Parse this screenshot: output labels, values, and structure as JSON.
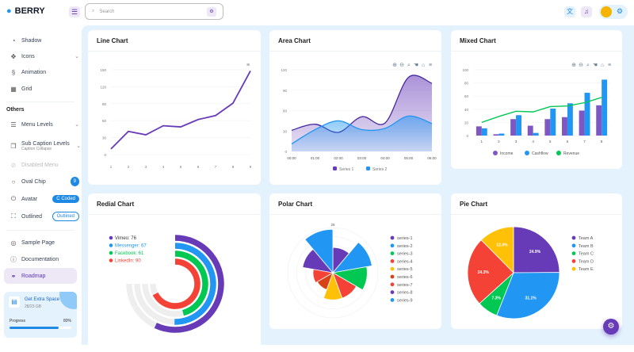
{
  "brand": "BERRY",
  "sidebar": {
    "items": [
      {
        "label": "Shadow",
        "icon": "shadow-icon"
      },
      {
        "label": "Icons",
        "icon": "icons-icon"
      },
      {
        "label": "Animation",
        "icon": "animation-icon"
      },
      {
        "label": "Grid",
        "icon": "grid-icon"
      }
    ],
    "section": "Others",
    "others": [
      {
        "label": "Menu Levels"
      },
      {
        "label": "Sub Caption Levels",
        "caption": "Caption Collapse"
      },
      {
        "label": "Disabled Menu"
      },
      {
        "label": "Oval Chip",
        "badge": "9"
      },
      {
        "label": "Avatar",
        "badge": "Coded",
        "badge_prefix": "C"
      },
      {
        "label": "Outlined",
        "badge": "Outlined"
      }
    ],
    "bottom": [
      {
        "label": "Sample Page"
      },
      {
        "label": "Documentation"
      },
      {
        "label": "Roadmap"
      }
    ],
    "storage": {
      "title": "Get Extra Space",
      "subtitle": "28/23 GB",
      "progress_label": "Progress",
      "progress_text": "80%",
      "progress": 80
    }
  },
  "header": {
    "search_placeholder": "Search"
  },
  "colors": {
    "purple": "#673ab7",
    "blue": "#2196f3",
    "green": "#00c853",
    "red": "#f44336",
    "yellow": "#ffc107",
    "orange": "#d84315",
    "bg": "#e3f2fd"
  },
  "cards": {
    "line": "Line Chart",
    "area": "Area Chart",
    "mixed": "Mixed Chart",
    "radial": "Redial Chart",
    "polar": "Polar Chart",
    "pie": "Pie Chart"
  },
  "chart_data": [
    {
      "type": "line",
      "title": "Line Chart",
      "categories": [
        "1",
        "2",
        "3",
        "4",
        "5",
        "6",
        "7",
        "8",
        "9"
      ],
      "values": [
        10,
        41,
        35,
        51,
        49,
        62,
        69,
        91,
        148
      ],
      "ylim": [
        0,
        150
      ],
      "yticks": [
        "0",
        "30",
        "60",
        "90",
        "120",
        "150"
      ]
    },
    {
      "type": "area",
      "title": "Area Chart",
      "categories": [
        "00:00",
        "01:00",
        "02:00",
        "03:00",
        "04:00",
        "05:00",
        "06:00"
      ],
      "ylim": [
        0,
        120
      ],
      "yticks": [
        "0",
        "30",
        "60",
        "90",
        "120"
      ],
      "series": [
        {
          "name": "Series 1",
          "values": [
            31,
            40,
            28,
            51,
            42,
            109,
            100
          ]
        },
        {
          "name": "Series 2",
          "values": [
            11,
            32,
            45,
            32,
            34,
            52,
            41
          ]
        }
      ]
    },
    {
      "type": "bar",
      "title": "Mixed Chart",
      "categories": [
        "1",
        "2",
        "3",
        "4",
        "5",
        "6",
        "7",
        "8"
      ],
      "ylim": [
        0,
        100
      ],
      "yticks": [
        "0",
        "20",
        "40",
        "60",
        "80",
        "100"
      ],
      "series": [
        {
          "name": "Income",
          "type": "bar",
          "values": [
            14,
            2,
            25,
            15,
            25,
            28,
            38,
            46
          ]
        },
        {
          "name": "Cashflow",
          "type": "bar",
          "values": [
            11,
            3,
            31,
            4,
            41,
            49,
            65,
            85
          ]
        },
        {
          "name": "Revenue",
          "type": "line",
          "values": [
            20,
            29,
            37,
            36,
            44,
            45,
            50,
            58
          ]
        }
      ]
    },
    {
      "type": "radialBar",
      "title": "Redial Chart",
      "series": [
        {
          "name": "Vimeo",
          "value": 76,
          "label": "Vimeo: 76"
        },
        {
          "name": "Messenger",
          "value": 67,
          "label": "Messenger: 67"
        },
        {
          "name": "Facebook",
          "value": 61,
          "label": "Facebook: 61"
        },
        {
          "name": "LinkedIn",
          "value": 90,
          "label": "LinkedIn: 90"
        }
      ]
    },
    {
      "type": "polarArea",
      "title": "Polar Chart",
      "rmax": 25,
      "rtick": "25",
      "series": [
        {
          "name": "series-1",
          "value": 14
        },
        {
          "name": "series-2",
          "value": 22
        },
        {
          "name": "series-3",
          "value": 19
        },
        {
          "name": "series-4",
          "value": 15
        },
        {
          "name": "series-5",
          "value": 15
        },
        {
          "name": "series-6",
          "value": 10
        },
        {
          "name": "series-7",
          "value": 11
        },
        {
          "name": "series-8",
          "value": 17
        },
        {
          "name": "series-9",
          "value": 24
        }
      ]
    },
    {
      "type": "pie",
      "title": "Pie Chart",
      "series": [
        {
          "name": "Team A",
          "value": 24.9,
          "label": "24.9%"
        },
        {
          "name": "Team B",
          "value": 31.1,
          "label": "31.1%"
        },
        {
          "name": "Team C",
          "value": 7.3,
          "label": "7.3%"
        },
        {
          "name": "Team D",
          "value": 24.3,
          "label": "24.3%"
        },
        {
          "name": "Team E",
          "value": 12.4,
          "label": "12.4%"
        }
      ]
    }
  ]
}
